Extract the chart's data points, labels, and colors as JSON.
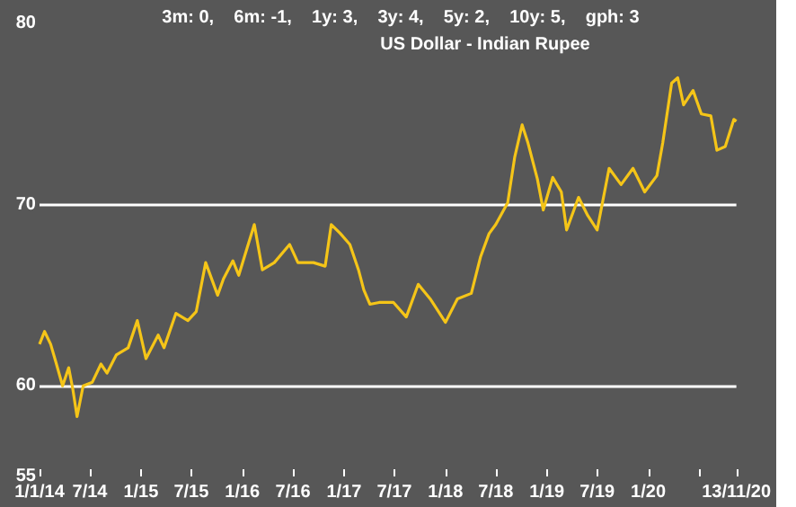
{
  "chart_data": {
    "type": "line",
    "title": "US Dollar - Indian Rupee",
    "subtitle": "3m: 0,    6m: -1,    1y: 3,    3y: 4,    5y: 2,    10y: 5,    gph: 3",
    "x": [
      "2014-01-01",
      "2014-01-19",
      "2014-02-10",
      "2014-03-01",
      "2014-03-25",
      "2014-04-16",
      "2014-05-01",
      "2014-05-16",
      "2014-06-07",
      "2014-07-10",
      "2014-08-10",
      "2014-09-01",
      "2014-10-04",
      "2014-11-16",
      "2014-12-19",
      "2015-01-19",
      "2015-03-04",
      "2015-03-25",
      "2015-05-07",
      "2015-06-19",
      "2015-07-19",
      "2015-08-22",
      "2015-10-04",
      "2015-10-25",
      "2015-11-28",
      "2015-12-19",
      "2016-02-13",
      "2016-03-13",
      "2016-04-25",
      "2016-06-19",
      "2016-07-19",
      "2016-09-13",
      "2016-10-25",
      "2016-11-16",
      "2016-12-19",
      "2017-01-22",
      "2017-02-22",
      "2017-03-13",
      "2017-04-04",
      "2017-05-07",
      "2017-06-28",
      "2017-08-13",
      "2017-09-25",
      "2017-11-07",
      "2018-01-01",
      "2018-02-13",
      "2018-04-04",
      "2018-05-07",
      "2018-06-07",
      "2018-07-01",
      "2018-08-13",
      "2018-09-07",
      "2018-10-04",
      "2018-10-25",
      "2018-11-28",
      "2018-12-19",
      "2019-01-22",
      "2019-02-22",
      "2019-03-13",
      "2019-04-25",
      "2019-05-28",
      "2019-07-01",
      "2019-08-13",
      "2019-09-25",
      "2019-11-07",
      "2019-12-19",
      "2020-02-01",
      "2020-02-22",
      "2020-03-25",
      "2020-04-16",
      "2020-05-07",
      "2020-06-10",
      "2020-07-10",
      "2020-08-13",
      "2020-09-04",
      "2020-10-04",
      "2020-11-04",
      "2020-11-13"
    ],
    "series": [
      {
        "color": "#f5c518",
        "values": [
          62.3,
          63.0,
          62.3,
          61.3,
          60.0,
          61.0,
          59.8,
          58.3,
          60.0,
          60.2,
          61.2,
          60.7,
          61.7,
          62.1,
          63.6,
          61.5,
          62.8,
          62.1,
          64.0,
          63.6,
          64.1,
          66.8,
          65.0,
          65.9,
          66.9,
          66.1,
          68.9,
          66.4,
          66.8,
          67.8,
          66.8,
          66.8,
          66.6,
          68.9,
          68.4,
          67.8,
          66.4,
          65.3,
          64.5,
          64.6,
          64.6,
          63.8,
          65.6,
          64.8,
          63.5,
          64.8,
          65.1,
          67.1,
          68.4,
          68.9,
          70.1,
          72.6,
          74.4,
          73.4,
          71.4,
          69.7,
          71.5,
          70.7,
          68.6,
          70.4,
          69.4,
          68.6,
          72.0,
          71.1,
          72.0,
          70.7,
          71.6,
          73.4,
          76.7,
          77.0,
          75.5,
          76.3,
          75.0,
          74.9,
          73.0,
          73.2,
          74.7,
          74.6
        ]
      }
    ],
    "xlim": [
      "2014-01-01",
      "2020-11-13"
    ],
    "xticks": [
      {
        "value": "2014-01-01",
        "label": "1/1/14"
      },
      {
        "value": "2014-07-01",
        "label": "7/14"
      },
      {
        "value": "2015-01-01",
        "label": "1/15"
      },
      {
        "value": "2015-07-01",
        "label": "7/15"
      },
      {
        "value": "2016-01-01",
        "label": "1/16"
      },
      {
        "value": "2016-07-01",
        "label": "7/16"
      },
      {
        "value": "2017-01-01",
        "label": "1/17"
      },
      {
        "value": "2017-07-01",
        "label": "7/17"
      },
      {
        "value": "2018-01-01",
        "label": "1/18"
      },
      {
        "value": "2018-07-01",
        "label": "7/18"
      },
      {
        "value": "2019-01-01",
        "label": "1/19"
      },
      {
        "value": "2019-07-01",
        "label": "7/19"
      },
      {
        "value": "2020-01-01",
        "label": "1/20"
      },
      {
        "value": "2020-07-01",
        "label": null
      },
      {
        "value": "2020-11-13",
        "label": "13/11/20"
      }
    ],
    "ylim": [
      55,
      80
    ],
    "yticks": [
      55,
      60,
      70,
      80
    ],
    "ref_lines": [
      {
        "axis": "y",
        "value": 60,
        "color": "#ffffff"
      },
      {
        "axis": "y",
        "value": 70,
        "color": "#ffffff"
      }
    ],
    "marker": "none",
    "line_style": "solid"
  }
}
